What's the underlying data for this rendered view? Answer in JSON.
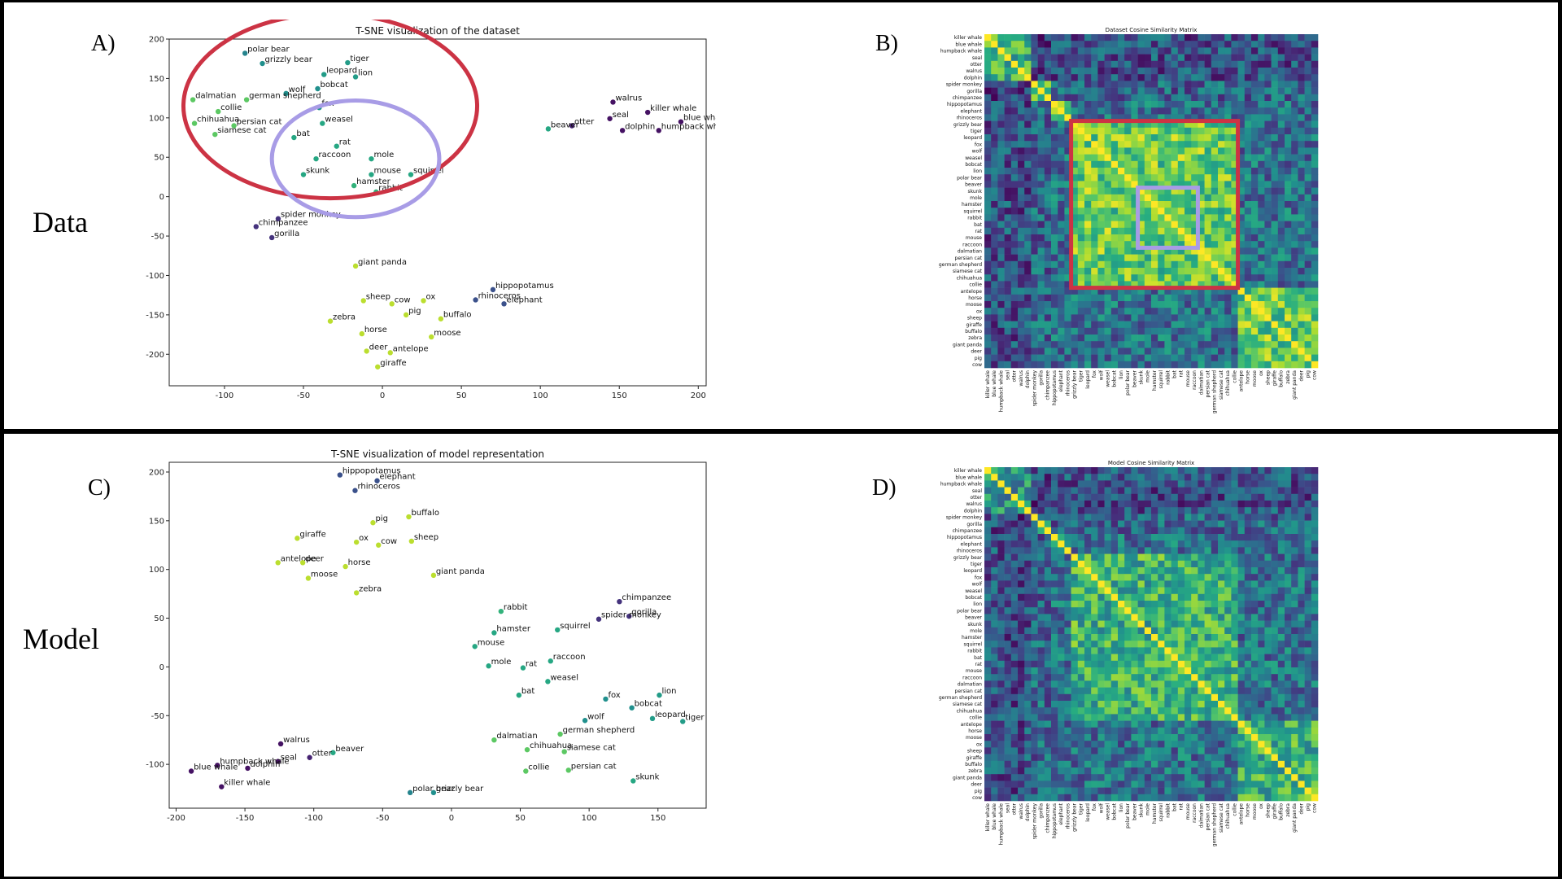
{
  "row_labels": {
    "data": "Data",
    "model": "Model"
  },
  "panel_labels": {
    "a": "A)",
    "b": "B)",
    "c": "C)",
    "d": "D)"
  },
  "colors": {
    "highlight_red": "#cc3344",
    "highlight_purple": "#a89ce6"
  },
  "chart_data": [
    {
      "type": "scatter",
      "id": "A",
      "title": "T-SNE visualization of the dataset",
      "xlim": [
        -135,
        205
      ],
      "ylim": [
        -240,
        200
      ],
      "xticks": [
        -100,
        -50,
        0,
        50,
        100,
        150,
        200
      ],
      "yticks": [
        -200,
        -150,
        -100,
        -50,
        0,
        50,
        100,
        150,
        200
      ],
      "colormap": "viridis",
      "points": [
        {
          "label": "polar bear",
          "x": -87,
          "y": 182,
          "c": 0.45
        },
        {
          "label": "grizzly bear",
          "x": -76,
          "y": 169,
          "c": 0.5
        },
        {
          "label": "tiger",
          "x": -22,
          "y": 170,
          "c": 0.55
        },
        {
          "label": "leopard",
          "x": -37,
          "y": 155,
          "c": 0.55
        },
        {
          "label": "lion",
          "x": -17,
          "y": 152,
          "c": 0.55
        },
        {
          "label": "bobcat",
          "x": -41,
          "y": 137,
          "c": 0.5
        },
        {
          "label": "wolf",
          "x": -61,
          "y": 131,
          "c": 0.5
        },
        {
          "label": "german shepherd",
          "x": -86,
          "y": 123,
          "c": 0.75
        },
        {
          "label": "dalmatian",
          "x": -120,
          "y": 123,
          "c": 0.75
        },
        {
          "label": "fox",
          "x": -40,
          "y": 113,
          "c": 0.5
        },
        {
          "label": "collie",
          "x": -104,
          "y": 108,
          "c": 0.75
        },
        {
          "label": "chihuahua",
          "x": -119,
          "y": 93,
          "c": 0.75
        },
        {
          "label": "persian cat",
          "x": -94,
          "y": 90,
          "c": 0.75
        },
        {
          "label": "siamese cat",
          "x": -106,
          "y": 79,
          "c": 0.75
        },
        {
          "label": "weasel",
          "x": -38,
          "y": 93,
          "c": 0.6
        },
        {
          "label": "bat",
          "x": -56,
          "y": 75,
          "c": 0.6
        },
        {
          "label": "rat",
          "x": -29,
          "y": 64,
          "c": 0.6
        },
        {
          "label": "raccoon",
          "x": -42,
          "y": 48,
          "c": 0.6
        },
        {
          "label": "mole",
          "x": -7,
          "y": 48,
          "c": 0.6
        },
        {
          "label": "mouse",
          "x": -7,
          "y": 28,
          "c": 0.6
        },
        {
          "label": "skunk",
          "x": -50,
          "y": 28,
          "c": 0.6
        },
        {
          "label": "squirrel",
          "x": 18,
          "y": 28,
          "c": 0.6
        },
        {
          "label": "hamster",
          "x": -18,
          "y": 14,
          "c": 0.65
        },
        {
          "label": "rabbit",
          "x": -4,
          "y": 6,
          "c": 0.65
        },
        {
          "label": "spider monkey",
          "x": -66,
          "y": -28,
          "c": 0.15
        },
        {
          "label": "chimpanzee",
          "x": -80,
          "y": -38,
          "c": 0.15
        },
        {
          "label": "gorilla",
          "x": -70,
          "y": -52,
          "c": 0.15
        },
        {
          "label": "walrus",
          "x": 146,
          "y": 120,
          "c": 0.05
        },
        {
          "label": "killer whale",
          "x": 168,
          "y": 107,
          "c": 0.05
        },
        {
          "label": "seal",
          "x": 144,
          "y": 99,
          "c": 0.05
        },
        {
          "label": "blue whale",
          "x": 189,
          "y": 95,
          "c": 0.05
        },
        {
          "label": "otter",
          "x": 120,
          "y": 90,
          "c": 0.1
        },
        {
          "label": "dolphin",
          "x": 152,
          "y": 84,
          "c": 0.05
        },
        {
          "label": "humpback whale",
          "x": 175,
          "y": 84,
          "c": 0.05
        },
        {
          "label": "beaver",
          "x": 105,
          "y": 86,
          "c": 0.6
        },
        {
          "label": "giant panda",
          "x": -17,
          "y": -88,
          "c": 0.9
        },
        {
          "label": "hippopotamus",
          "x": 70,
          "y": -118,
          "c": 0.25
        },
        {
          "label": "rhinoceros",
          "x": 59,
          "y": -131,
          "c": 0.25
        },
        {
          "label": "elephant",
          "x": 77,
          "y": -136,
          "c": 0.25
        },
        {
          "label": "sheep",
          "x": -12,
          "y": -132,
          "c": 0.9
        },
        {
          "label": "cow",
          "x": 6,
          "y": -136,
          "c": 0.9
        },
        {
          "label": "ox",
          "x": 26,
          "y": -132,
          "c": 0.9
        },
        {
          "label": "pig",
          "x": 15,
          "y": -150,
          "c": 0.9
        },
        {
          "label": "buffalo",
          "x": 37,
          "y": -155,
          "c": 0.9
        },
        {
          "label": "zebra",
          "x": -33,
          "y": -158,
          "c": 0.9
        },
        {
          "label": "horse",
          "x": -13,
          "y": -174,
          "c": 0.9
        },
        {
          "label": "moose",
          "x": 31,
          "y": -178,
          "c": 0.9
        },
        {
          "label": "deer",
          "x": -10,
          "y": -196,
          "c": 0.9
        },
        {
          "label": "antelope",
          "x": 5,
          "y": -198,
          "c": 0.9
        },
        {
          "label": "giraffe",
          "x": -3,
          "y": -216,
          "c": 0.9
        }
      ],
      "highlights": [
        {
          "shape": "ellipse",
          "color": "red",
          "cx": -33,
          "cy": 115,
          "rx": 93,
          "ry": 117
        },
        {
          "shape": "ellipse",
          "color": "purple",
          "cx": -17,
          "cy": 48,
          "rx": 53,
          "ry": 74
        }
      ]
    },
    {
      "type": "heatmap",
      "id": "B",
      "title": "Dataset Cosine Similarity Matrix",
      "colormap": "viridis",
      "labels": [
        "killer whale",
        "blue whale",
        "humpback whale",
        "seal",
        "otter",
        "walrus",
        "dolphin",
        "spider monkey",
        "gorilla",
        "chimpanzee",
        "hippopotamus",
        "elephant",
        "rhinoceros",
        "grizzly bear",
        "tiger",
        "leopard",
        "fox",
        "wolf",
        "weasel",
        "bobcat",
        "lion",
        "polar bear",
        "beaver",
        "skunk",
        "mole",
        "hamster",
        "squirrel",
        "rabbit",
        "bat",
        "rat",
        "mouse",
        "raccoon",
        "dalmatian",
        "persian cat",
        "german shepherd",
        "siamese cat",
        "chihuahua",
        "collie",
        "antelope",
        "horse",
        "moose",
        "ox",
        "sheep",
        "giraffe",
        "buffalo",
        "zebra",
        "giant panda",
        "deer",
        "pig",
        "cow"
      ],
      "highlight_boxes": [
        {
          "color": "red",
          "from": "grizzly bear",
          "to": "collie"
        },
        {
          "color": "purple",
          "from": "skunk",
          "to": "raccoon"
        }
      ]
    },
    {
      "type": "scatter",
      "id": "C",
      "title": "T-SNE visualization of model representation",
      "xlim": [
        -205,
        185
      ],
      "ylim": [
        -145,
        210
      ],
      "xticks": [
        -200,
        -150,
        -100,
        -50,
        0,
        50,
        100,
        150
      ],
      "yticks": [
        -100,
        -50,
        0,
        50,
        100,
        150,
        200
      ],
      "colormap": "viridis",
      "points": [
        {
          "label": "hippopotamus",
          "x": -81,
          "y": 197,
          "c": 0.25
        },
        {
          "label": "elephant",
          "x": -54,
          "y": 191,
          "c": 0.25
        },
        {
          "label": "rhinoceros",
          "x": -70,
          "y": 181,
          "c": 0.25
        },
        {
          "label": "buffalo",
          "x": -31,
          "y": 154,
          "c": 0.9
        },
        {
          "label": "pig",
          "x": -57,
          "y": 148,
          "c": 0.9
        },
        {
          "label": "giraffe",
          "x": -112,
          "y": 132,
          "c": 0.9
        },
        {
          "label": "ox",
          "x": -69,
          "y": 128,
          "c": 0.9
        },
        {
          "label": "cow",
          "x": -53,
          "y": 125,
          "c": 0.9
        },
        {
          "label": "sheep",
          "x": -29,
          "y": 129,
          "c": 0.9
        },
        {
          "label": "antelope",
          "x": -126,
          "y": 107,
          "c": 0.9
        },
        {
          "label": "deer",
          "x": -108,
          "y": 107,
          "c": 0.9
        },
        {
          "label": "horse",
          "x": -77,
          "y": 103,
          "c": 0.9
        },
        {
          "label": "moose",
          "x": -104,
          "y": 91,
          "c": 0.9
        },
        {
          "label": "giant panda",
          "x": -13,
          "y": 94,
          "c": 0.9
        },
        {
          "label": "zebra",
          "x": -69,
          "y": 76,
          "c": 0.9
        },
        {
          "label": "chimpanzee",
          "x": 122,
          "y": 67,
          "c": 0.15
        },
        {
          "label": "gorilla",
          "x": 129,
          "y": 52,
          "c": 0.15
        },
        {
          "label": "spider monkey",
          "x": 107,
          "y": 49,
          "c": 0.15
        },
        {
          "label": "rabbit",
          "x": 36,
          "y": 57,
          "c": 0.65
        },
        {
          "label": "squirrel",
          "x": 77,
          "y": 38,
          "c": 0.6
        },
        {
          "label": "hamster",
          "x": 31,
          "y": 35,
          "c": 0.6
        },
        {
          "label": "mouse",
          "x": 17,
          "y": 21,
          "c": 0.6
        },
        {
          "label": "raccoon",
          "x": 72,
          "y": 6,
          "c": 0.6
        },
        {
          "label": "mole",
          "x": 27,
          "y": 1,
          "c": 0.6
        },
        {
          "label": "rat",
          "x": 52,
          "y": -1,
          "c": 0.6
        },
        {
          "label": "weasel",
          "x": 70,
          "y": -15,
          "c": 0.6
        },
        {
          "label": "bat",
          "x": 49,
          "y": -29,
          "c": 0.6
        },
        {
          "label": "fox",
          "x": 112,
          "y": -33,
          "c": 0.5
        },
        {
          "label": "lion",
          "x": 151,
          "y": -29,
          "c": 0.55
        },
        {
          "label": "bobcat",
          "x": 131,
          "y": -42,
          "c": 0.5
        },
        {
          "label": "wolf",
          "x": 97,
          "y": -55,
          "c": 0.5
        },
        {
          "label": "leopard",
          "x": 146,
          "y": -53,
          "c": 0.55
        },
        {
          "label": "tiger",
          "x": 168,
          "y": -56,
          "c": 0.55
        },
        {
          "label": "german shepherd",
          "x": 79,
          "y": -69,
          "c": 0.75
        },
        {
          "label": "dalmatian",
          "x": 31,
          "y": -75,
          "c": 0.75
        },
        {
          "label": "chihuahua",
          "x": 55,
          "y": -85,
          "c": 0.75
        },
        {
          "label": "siamese cat",
          "x": 82,
          "y": -87,
          "c": 0.75
        },
        {
          "label": "persian cat",
          "x": 85,
          "y": -106,
          "c": 0.75
        },
        {
          "label": "collie",
          "x": 54,
          "y": -107,
          "c": 0.75
        },
        {
          "label": "skunk",
          "x": 132,
          "y": -117,
          "c": 0.6
        },
        {
          "label": "polar bear",
          "x": -30,
          "y": -129,
          "c": 0.45
        },
        {
          "label": "grizzly bear",
          "x": -13,
          "y": -129,
          "c": 0.5
        },
        {
          "label": "walrus",
          "x": -124,
          "y": -79,
          "c": 0.05
        },
        {
          "label": "beaver",
          "x": -86,
          "y": -88,
          "c": 0.6
        },
        {
          "label": "otter",
          "x": -103,
          "y": -93,
          "c": 0.1
        },
        {
          "label": "seal",
          "x": -126,
          "y": -97,
          "c": 0.05
        },
        {
          "label": "humpback whale",
          "x": -170,
          "y": -101,
          "c": 0.05
        },
        {
          "label": "dolphin",
          "x": -148,
          "y": -104,
          "c": 0.05
        },
        {
          "label": "blue whale",
          "x": -189,
          "y": -107,
          "c": 0.05
        },
        {
          "label": "killer whale",
          "x": -167,
          "y": -123,
          "c": 0.05
        }
      ]
    },
    {
      "type": "heatmap",
      "id": "D",
      "title": "Model Cosine Similarity Matrix",
      "colormap": "viridis",
      "labels": [
        "killer whale",
        "blue whale",
        "humpback whale",
        "seal",
        "otter",
        "walrus",
        "dolphin",
        "spider monkey",
        "gorilla",
        "chimpanzee",
        "hippopotamus",
        "elephant",
        "rhinoceros",
        "grizzly bear",
        "tiger",
        "leopard",
        "fox",
        "wolf",
        "weasel",
        "bobcat",
        "lion",
        "polar bear",
        "beaver",
        "skunk",
        "mole",
        "hamster",
        "squirrel",
        "rabbit",
        "bat",
        "rat",
        "mouse",
        "raccoon",
        "dalmatian",
        "persian cat",
        "german shepherd",
        "siamese cat",
        "chihuahua",
        "collie",
        "antelope",
        "horse",
        "moose",
        "ox",
        "sheep",
        "giraffe",
        "buffalo",
        "zebra",
        "giant panda",
        "deer",
        "pig",
        "cow"
      ]
    }
  ]
}
